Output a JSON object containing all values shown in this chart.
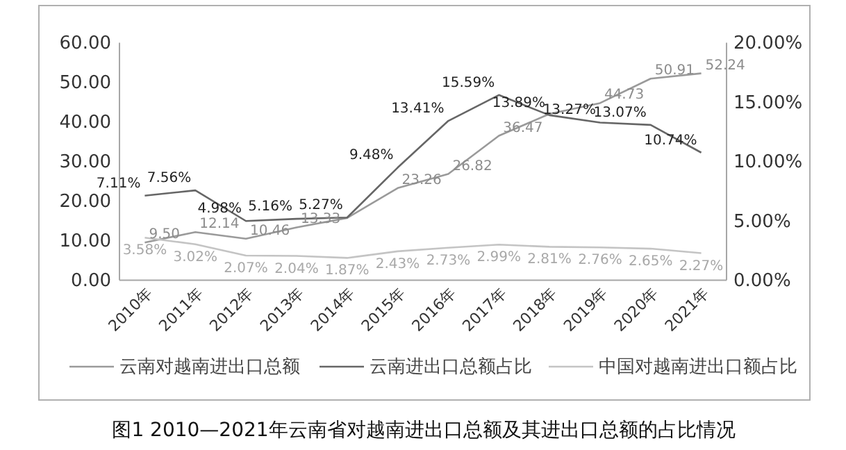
{
  "chart_data": {
    "type": "line",
    "title": "图1  2010—2021年云南省对越南进出口总额及其进出口总额的占比情况",
    "categories": [
      "2010年",
      "2011年",
      "2012年",
      "2013年",
      "2014年",
      "2015年",
      "2016年",
      "2017年",
      "2018年",
      "2019年",
      "2020年",
      "2021年"
    ],
    "ylim": [
      0,
      60
    ],
    "yticks": [
      {
        "value": 0,
        "label": "0.00"
      },
      {
        "value": 10,
        "label": "10.00"
      },
      {
        "value": 20,
        "label": "20.00"
      },
      {
        "value": 30,
        "label": "30.00"
      },
      {
        "value": 40,
        "label": "40.00"
      },
      {
        "value": 50,
        "label": "50.00"
      },
      {
        "value": 60,
        "label": "60.00"
      }
    ],
    "y2lim": [
      0,
      20
    ],
    "y2ticks": [
      {
        "value": 0,
        "label": "0.00%"
      },
      {
        "value": 5,
        "label": "5.00%"
      },
      {
        "value": 10,
        "label": "10.00%"
      },
      {
        "value": 15,
        "label": "15.00%"
      },
      {
        "value": 20,
        "label": "20.00%"
      }
    ],
    "legend": "bottom",
    "grid": false,
    "series": [
      {
        "name": "云南对越南进出口总额",
        "color": "#9a9a9a",
        "values": [
          9.5,
          12.14,
          10.46,
          13.33,
          15.7,
          23.26,
          26.82,
          36.47,
          42.0,
          44.73,
          50.91,
          52.24
        ],
        "value_labels": [
          "9.50",
          "12.14",
          "10.46",
          "13.33",
          null,
          "23.26",
          "26.82",
          "36.47",
          null,
          "44.73",
          "50.91",
          "52.24"
        ]
      },
      {
        "name": "云南进出口总额占比",
        "color": "#666666",
        "axis": "y2",
        "values": [
          7.11,
          7.56,
          4.98,
          5.16,
          5.27,
          9.48,
          13.41,
          15.59,
          13.89,
          13.27,
          13.07,
          10.74
        ],
        "value_labels": [
          "7.11%",
          "7.56%",
          "4.98%",
          "5.16%",
          "5.27%",
          "9.48%",
          "13.41%",
          "15.59%",
          "13.89%",
          "13.27%",
          "13.07%",
          "10.74%"
        ]
      },
      {
        "name": "中国对越南进出口额占比",
        "color": "#c4c4c4",
        "axis": "y2",
        "values": [
          3.58,
          3.02,
          2.07,
          2.04,
          1.87,
          2.43,
          2.73,
          2.99,
          2.81,
          2.76,
          2.65,
          2.27
        ],
        "value_labels": [
          "3.58%",
          "3.02%",
          "2.07%",
          "2.04%",
          "1.87%",
          "2.43%",
          "2.73%",
          "2.99%",
          "2.81%",
          "2.76%",
          "2.65%",
          "2.27%"
        ]
      }
    ]
  }
}
